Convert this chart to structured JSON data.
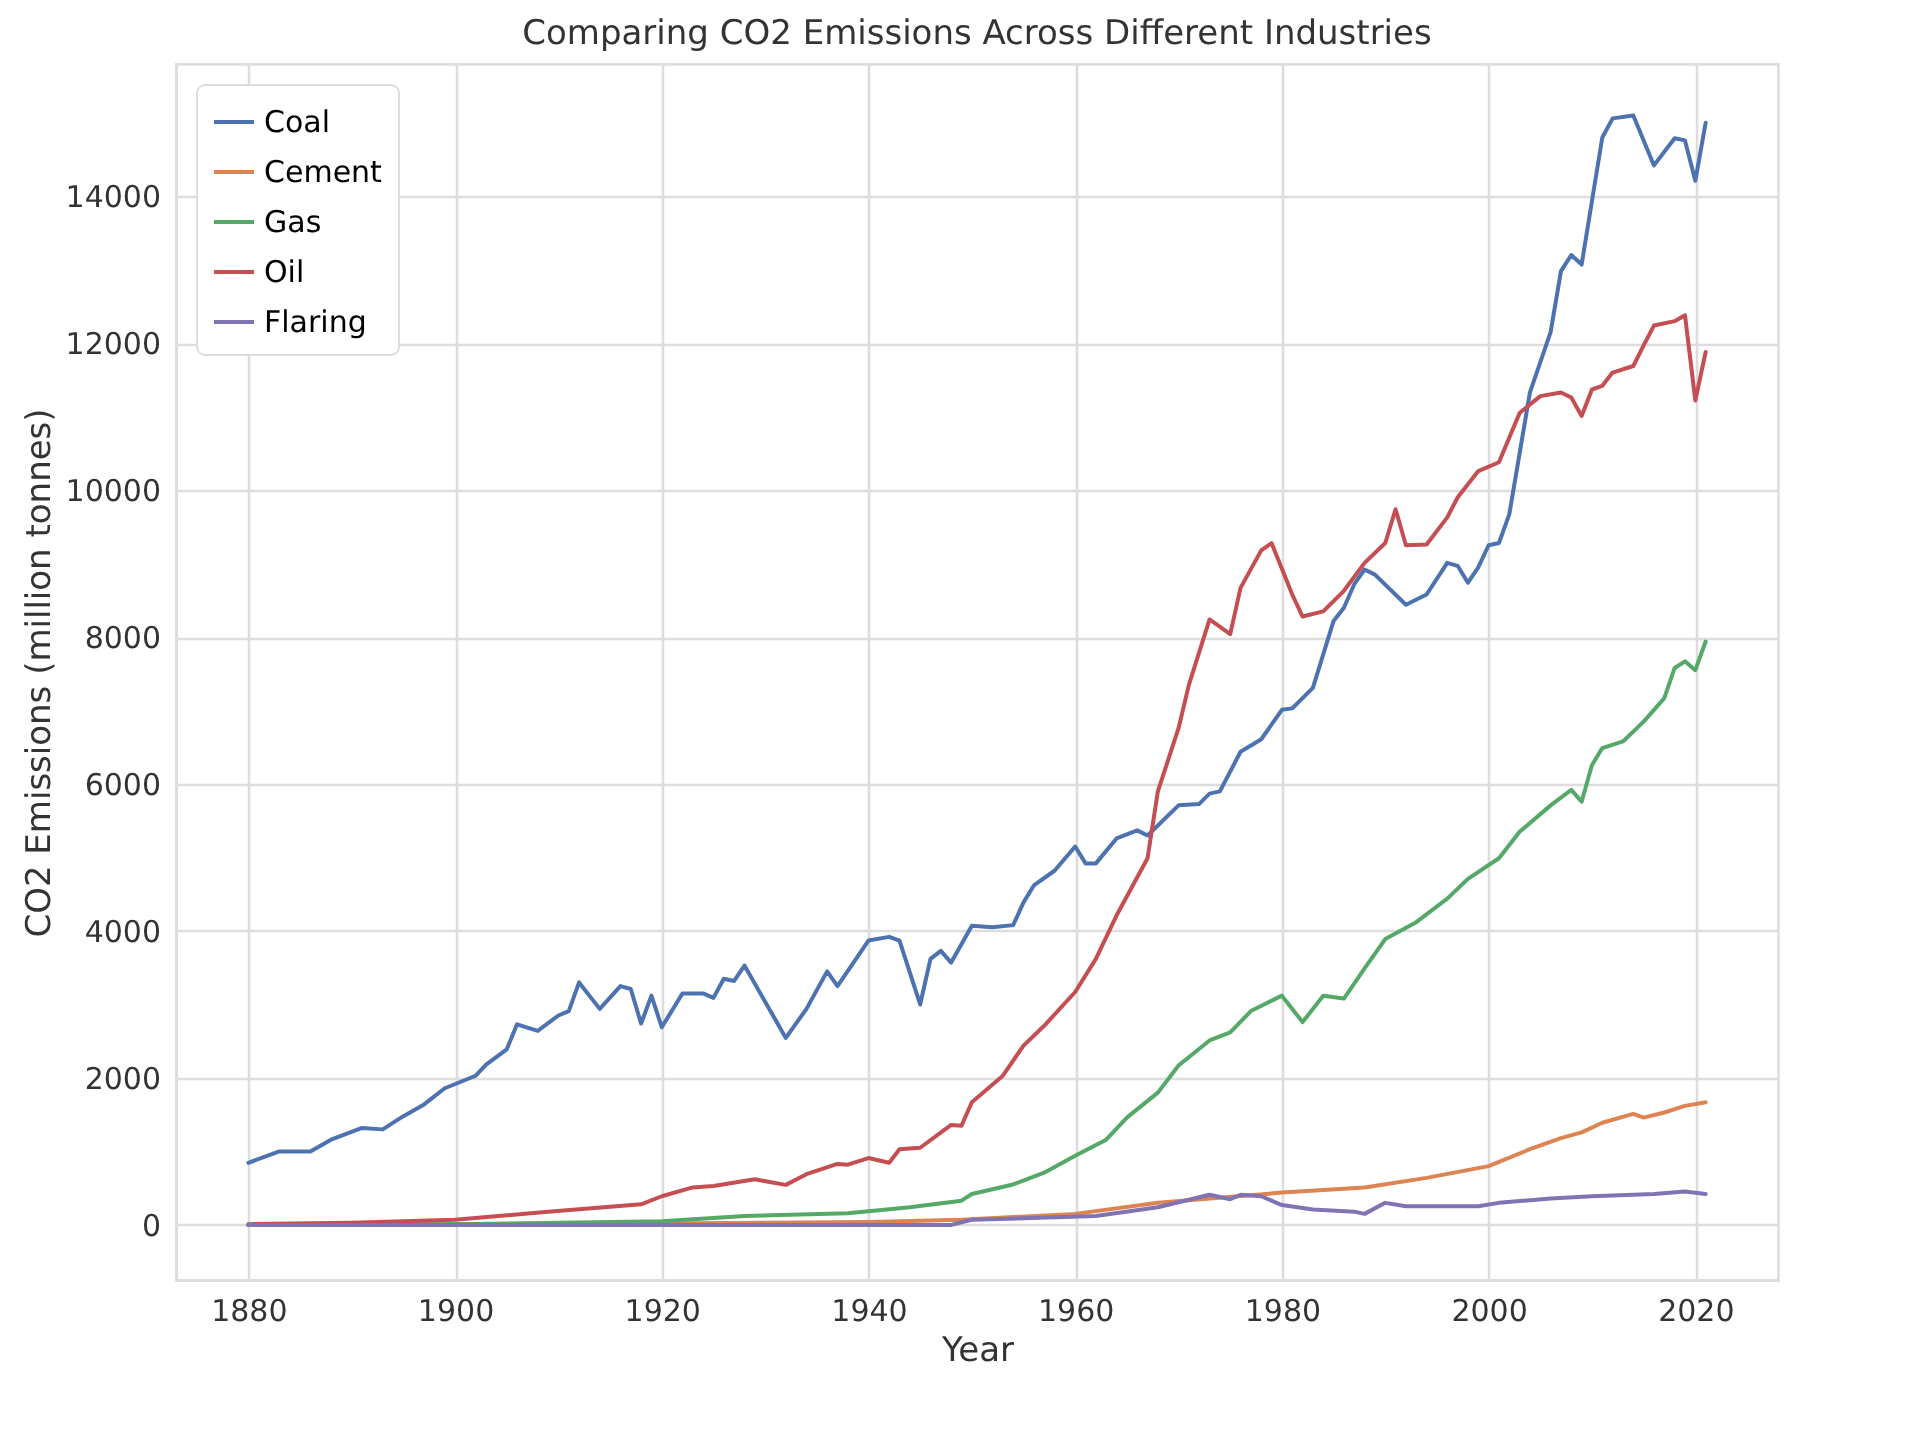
{
  "chart_data": {
    "type": "line",
    "title": "Comparing CO2 Emissions Across Different Industries",
    "xlabel": "Year",
    "ylabel": "CO2 Emissions (million tonnes)",
    "xlim": [
      1873,
      2028
    ],
    "xticks": [
      1880,
      1900,
      1920,
      1940,
      1960,
      1980,
      2000,
      2020
    ],
    "ylim": [
      -750,
      15800
    ],
    "yticks": [
      0,
      2000,
      4000,
      6000,
      8000,
      10000,
      12000,
      14000
    ],
    "grid": true,
    "legend": "top left",
    "line_style": "solid",
    "series": [
      {
        "name": "Coal",
        "color": "#4c72b0",
        "x": [
          1880,
          1883,
          1886,
          1888,
          1891,
          1893,
          1895,
          1897,
          1899,
          1902,
          1903,
          1905,
          1906,
          1908,
          1910,
          1911,
          1912,
          1914,
          1916,
          1917,
          1918,
          1919,
          1920,
          1922,
          1924,
          1925,
          1926,
          1927,
          1928,
          1932,
          1934,
          1936,
          1937,
          1940,
          1942,
          1943,
          1945,
          1946,
          1947,
          1948,
          1950,
          1952,
          1954,
          1955,
          1956,
          1958,
          1960,
          1961,
          1962,
          1964,
          1966,
          1967,
          1970,
          1972,
          1973,
          1974,
          1976,
          1978,
          1980,
          1981,
          1983,
          1985,
          1986,
          1987,
          1988,
          1989,
          1992,
          1994,
          1996,
          1997,
          1998,
          1999,
          2000,
          2001,
          2002,
          2003,
          2004,
          2006,
          2007,
          2008,
          2009,
          2011,
          2012,
          2014,
          2016,
          2018,
          2019,
          2020,
          2021
        ],
        "values": [
          845,
          1000,
          1000,
          1160,
          1320,
          1300,
          1480,
          1640,
          1860,
          2030,
          2180,
          2390,
          2730,
          2640,
          2850,
          2910,
          3300,
          2940,
          3250,
          3210,
          2740,
          3120,
          2690,
          3150,
          3150,
          3090,
          3350,
          3320,
          3530,
          2545,
          2940,
          3450,
          3250,
          3870,
          3920,
          3870,
          3000,
          3620,
          3730,
          3570,
          4070,
          4050,
          4080,
          4390,
          4620,
          4820,
          5150,
          4920,
          4920,
          5260,
          5370,
          5300,
          5710,
          5730,
          5870,
          5900,
          6440,
          6610,
          7010,
          7030,
          7310,
          8220,
          8400,
          8720,
          8920,
          8850,
          8440,
          8580,
          9010,
          8970,
          8740,
          8950,
          9250,
          9280,
          9670,
          10500,
          11330,
          12150,
          12980,
          13200,
          13070,
          14800,
          15060,
          15100,
          14420,
          14790,
          14760,
          14210,
          15000
        ]
      },
      {
        "name": "Cement",
        "color": "#dd8452",
        "x": [
          1880,
          1920,
          1940,
          1949,
          1960,
          1968,
          1980,
          1988,
          1994,
          2000,
          2004,
          2007,
          2009,
          2011,
          2014,
          2015,
          2017,
          2019,
          2021
        ],
        "values": [
          0,
          20,
          40,
          70,
          150,
          300,
          440,
          510,
          640,
          800,
          1030,
          1180,
          1260,
          1390,
          1510,
          1460,
          1530,
          1620,
          1670
        ]
      },
      {
        "name": "Gas",
        "color": "#55a868",
        "x": [
          1880,
          1900,
          1920,
          1928,
          1938,
          1944,
          1949,
          1950,
          1954,
          1957,
          1960,
          1963,
          1965,
          1968,
          1970,
          1973,
          1975,
          1977,
          1980,
          1982,
          1984,
          1986,
          1988,
          1990,
          1993,
          1996,
          1998,
          2001,
          2003,
          2006,
          2008,
          2009,
          2010,
          2011,
          2013,
          2015,
          2017,
          2018,
          2019,
          2020,
          2021
        ],
        "values": [
          0,
          10,
          50,
          120,
          160,
          240,
          330,
          420,
          550,
          710,
          940,
          1160,
          1460,
          1800,
          2170,
          2510,
          2620,
          2910,
          3120,
          2760,
          3120,
          3080,
          3490,
          3890,
          4120,
          4440,
          4710,
          4990,
          5350,
          5710,
          5920,
          5760,
          6260,
          6490,
          6580,
          6850,
          7170,
          7580,
          7670,
          7550,
          7940
        ]
      },
      {
        "name": "Oil",
        "color": "#c44e52",
        "x": [
          1880,
          1890,
          1900,
          1909,
          1918,
          1920,
          1923,
          1925,
          1929,
          1932,
          1934,
          1937,
          1938,
          1940,
          1942,
          1943,
          1945,
          1948,
          1949,
          1950,
          1953,
          1955,
          1957,
          1960,
          1962,
          1964,
          1967,
          1968,
          1970,
          1971,
          1973,
          1975,
          1976,
          1978,
          1979,
          1981,
          1982,
          1984,
          1986,
          1988,
          1990,
          1991,
          1992,
          1994,
          1996,
          1997,
          1999,
          2001,
          2003,
          2005,
          2007,
          2008,
          2009,
          2010,
          2011,
          2012,
          2014,
          2015,
          2016,
          2018,
          2019,
          2020,
          2021
        ],
        "values": [
          10,
          30,
          70,
          180,
          280,
          390,
          510,
          530,
          620,
          545,
          690,
          830,
          820,
          910,
          845,
          1030,
          1050,
          1360,
          1350,
          1670,
          2030,
          2440,
          2710,
          3170,
          3620,
          4210,
          4990,
          5900,
          6760,
          7350,
          8240,
          8040,
          8670,
          9180,
          9280,
          8580,
          8280,
          8350,
          8630,
          9010,
          9280,
          9740,
          9250,
          9260,
          9630,
          9900,
          10260,
          10380,
          11050,
          11280,
          11330,
          11260,
          11010,
          11370,
          11420,
          11600,
          11690,
          11970,
          12240,
          12300,
          12380,
          11220,
          11880
        ]
      },
      {
        "name": "Flaring",
        "color": "#8172b3",
        "x": [
          1880,
          1948,
          1950,
          1962,
          1968,
          1973,
          1975,
          1976,
          1978,
          1980,
          1983,
          1987,
          1988,
          1990,
          1992,
          1999,
          2001,
          2006,
          2010,
          2016,
          2019,
          2021
        ],
        "values": [
          0,
          0,
          70,
          120,
          240,
          410,
          350,
          410,
          390,
          270,
          210,
          180,
          150,
          300,
          255,
          255,
          300,
          360,
          390,
          420,
          455,
          420
        ]
      }
    ]
  }
}
